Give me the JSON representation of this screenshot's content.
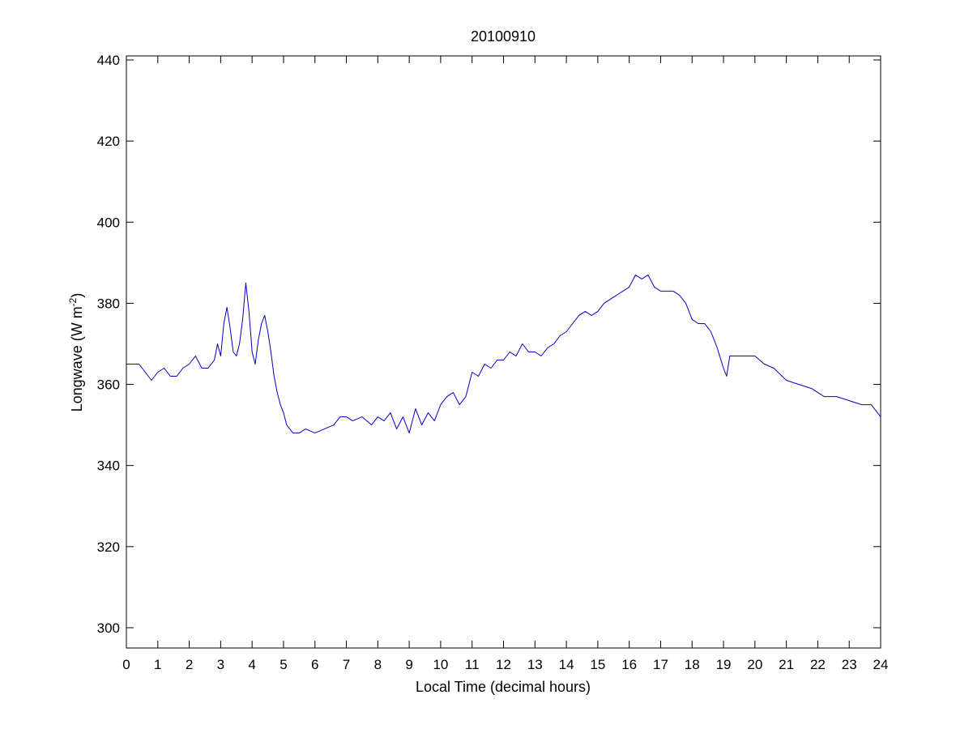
{
  "chart_data": {
    "type": "line",
    "title": "20100910",
    "xlabel": "Local Time (decimal hours)",
    "ylabel": "Longwave (W m",
    "ylabel_superscript": "-2",
    "ylabel_suffix": ")",
    "xlim": [
      0,
      24
    ],
    "ylim": [
      295,
      441
    ],
    "xticks": [
      0,
      1,
      2,
      3,
      4,
      5,
      6,
      7,
      8,
      9,
      10,
      11,
      12,
      13,
      14,
      15,
      16,
      17,
      18,
      19,
      20,
      21,
      22,
      23,
      24
    ],
    "yticks": [
      300,
      320,
      340,
      360,
      380,
      400,
      420,
      440
    ],
    "grid": false,
    "line_color": "#0000cc",
    "series": [
      {
        "x": [
          0,
          0.2,
          0.4,
          0.6,
          0.8,
          1.0,
          1.2,
          1.4,
          1.6,
          1.8,
          2.0,
          2.2,
          2.4,
          2.6,
          2.8,
          2.9,
          3.0,
          3.1,
          3.2,
          3.3,
          3.4,
          3.5,
          3.6,
          3.7,
          3.8,
          3.9,
          4.0,
          4.1,
          4.2,
          4.3,
          4.4,
          4.5,
          4.6,
          4.7,
          4.8,
          4.9,
          5.0,
          5.1,
          5.2,
          5.3,
          5.4,
          5.5,
          5.7,
          6.0,
          6.3,
          6.6,
          6.8,
          7.0,
          7.2,
          7.5,
          7.8,
          8.0,
          8.2,
          8.4,
          8.6,
          8.8,
          9.0,
          9.2,
          9.4,
          9.6,
          9.8,
          10.0,
          10.2,
          10.4,
          10.6,
          10.8,
          11.0,
          11.2,
          11.4,
          11.6,
          11.8,
          12.0,
          12.2,
          12.4,
          12.6,
          12.8,
          13.0,
          13.2,
          13.4,
          13.6,
          13.8,
          14.0,
          14.2,
          14.4,
          14.6,
          14.8,
          15.0,
          15.2,
          15.4,
          15.6,
          15.8,
          16.0,
          16.2,
          16.4,
          16.6,
          16.8,
          17.0,
          17.2,
          17.4,
          17.6,
          17.8,
          18.0,
          18.2,
          18.4,
          18.6,
          18.8,
          19.0,
          19.1,
          19.2,
          19.4,
          19.6,
          19.8,
          20.0,
          20.3,
          20.6,
          21.0,
          21.4,
          21.8,
          22.2,
          22.6,
          23.0,
          23.4,
          23.7,
          23.9,
          24.0
        ],
        "y": [
          365,
          365,
          365,
          363,
          361,
          363,
          364,
          362,
          362,
          364,
          365,
          367,
          364,
          364,
          366,
          370,
          367,
          375,
          379,
          374,
          368,
          367,
          370,
          376,
          385,
          378,
          368,
          365,
          371,
          375,
          377,
          373,
          368,
          362,
          358,
          355,
          353,
          350,
          349,
          348,
          348,
          348,
          349,
          348,
          349,
          350,
          352,
          352,
          351,
          352,
          350,
          352,
          351,
          353,
          349,
          352,
          348,
          354,
          350,
          353,
          351,
          355,
          357,
          358,
          355,
          357,
          363,
          362,
          365,
          364,
          366,
          366,
          368,
          367,
          370,
          368,
          368,
          367,
          369,
          370,
          372,
          373,
          375,
          377,
          378,
          377,
          378,
          380,
          381,
          382,
          383,
          384,
          387,
          386,
          387,
          384,
          383,
          383,
          383,
          382,
          380,
          376,
          375,
          375,
          373,
          369,
          364,
          362,
          367,
          367,
          367,
          367,
          367,
          365,
          364,
          361,
          360,
          359,
          357,
          357,
          356,
          355,
          355,
          353,
          352
        ]
      }
    ]
  }
}
